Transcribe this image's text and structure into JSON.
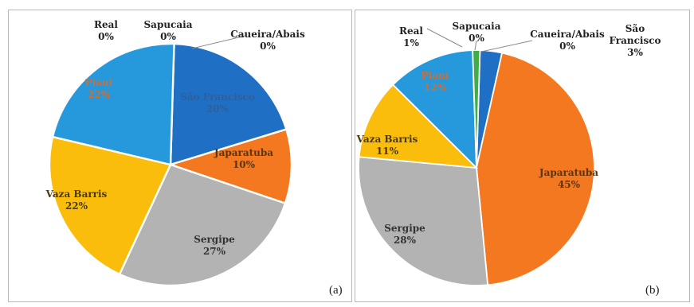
{
  "chart_data": [
    {
      "type": "pie",
      "panel_label": "(a)",
      "slices": [
        {
          "name": "São Francisco",
          "value": 20,
          "pct": "20%",
          "color": "#1f6fc4",
          "label_color": "#2f5f9a"
        },
        {
          "name": "Japaratuba",
          "value": 10,
          "pct": "10%",
          "color": "#f4781f",
          "label_color": "#5b3412"
        },
        {
          "name": "Sergipe",
          "value": 27,
          "pct": "27%",
          "color": "#b3b3b3",
          "label_color": "#333333"
        },
        {
          "name": "Vaza Barris",
          "value": 22,
          "pct": "22%",
          "color": "#fbbd0c",
          "label_color": "#4a3a08"
        },
        {
          "name": "Piauí",
          "value": 22,
          "pct": "22%",
          "color": "#2699dc",
          "label_color": "#cf6d34"
        },
        {
          "name": "Real",
          "value": 0,
          "pct": "0%",
          "color": "#6fbf3f",
          "label_color": "#222222"
        },
        {
          "name": "Sapucaia",
          "value": 0,
          "pct": "0%",
          "color": "#f1d12a",
          "label_color": "#222222"
        },
        {
          "name": "Caueira/Abais",
          "value": 0,
          "pct": "0%",
          "color": "#e0e0e0",
          "label_color": "#222222"
        }
      ]
    },
    {
      "type": "pie",
      "panel_label": "(b)",
      "slices": [
        {
          "name": "São Francisco",
          "value": 3,
          "pct": "3%",
          "color": "#1f6fc4",
          "label_color": "#222222"
        },
        {
          "name": "Japaratuba",
          "value": 45,
          "pct": "45%",
          "color": "#f4781f",
          "label_color": "#5b3412"
        },
        {
          "name": "Sergipe",
          "value": 28,
          "pct": "28%",
          "color": "#b3b3b3",
          "label_color": "#333333"
        },
        {
          "name": "Vaza Barris",
          "value": 11,
          "pct": "11%",
          "color": "#fbbd0c",
          "label_color": "#4a3a08"
        },
        {
          "name": "Piauí",
          "value": 12,
          "pct": "12%",
          "color": "#2699dc",
          "label_color": "#cf6d34"
        },
        {
          "name": "Real",
          "value": 1,
          "pct": "1%",
          "color": "#3fae49",
          "label_color": "#222222"
        },
        {
          "name": "Sapucaia",
          "value": 0,
          "pct": "0%",
          "color": "#f1d12a",
          "label_color": "#222222"
        },
        {
          "name": "Caueira/Abais",
          "value": 0,
          "pct": "0%",
          "color": "#e0e0e0",
          "label_color": "#222222"
        }
      ]
    }
  ]
}
